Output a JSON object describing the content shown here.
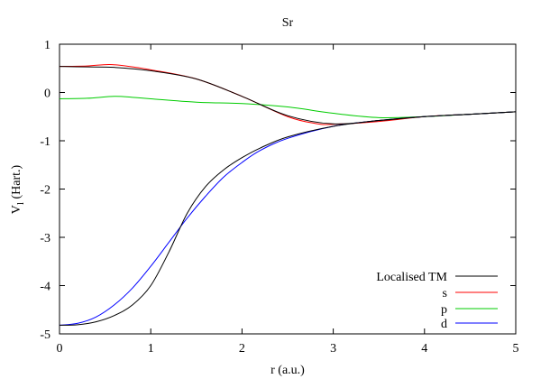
{
  "chart_data": {
    "type": "line",
    "title": "Sr",
    "xlabel": "r (a.u.)",
    "ylabel_main": "V",
    "ylabel_sub": "l",
    "ylabel_rest": " (Hart.)",
    "xlim": [
      0,
      5
    ],
    "ylim": [
      -5,
      1
    ],
    "xticks": [
      0,
      1,
      2,
      3,
      4,
      5
    ],
    "yticks": [
      1,
      0,
      -1,
      -2,
      -3,
      -4,
      -5
    ],
    "grid": false,
    "legend_position": "bottom-right",
    "series": [
      {
        "name": "Localised TM",
        "color": "#000000",
        "x": [
          0,
          0.3,
          0.6,
          1.0,
          1.5,
          2.0,
          2.5,
          3.0,
          3.5,
          4.0,
          4.5,
          5.0
        ],
        "y": [
          0.54,
          0.53,
          0.52,
          0.45,
          0.28,
          -0.08,
          -0.48,
          -0.65,
          -0.58,
          -0.5,
          -0.45,
          -0.4
        ]
      },
      {
        "name": "s",
        "color": "#ff0000",
        "x": [
          0,
          0.3,
          0.55,
          0.8,
          1.0,
          1.5,
          2.0,
          2.5,
          2.8,
          3.0,
          3.5,
          4.0,
          4.5,
          5.0
        ],
        "y": [
          0.54,
          0.55,
          0.58,
          0.53,
          0.47,
          0.28,
          -0.08,
          -0.5,
          -0.64,
          -0.66,
          -0.6,
          -0.5,
          -0.45,
          -0.4
        ]
      },
      {
        "name": "p",
        "color": "#00cc00",
        "x": [
          0,
          0.3,
          0.6,
          0.8,
          1.0,
          1.5,
          2.0,
          2.5,
          3.0,
          3.5,
          4.0,
          4.5,
          5.0
        ],
        "y": [
          -0.13,
          -0.12,
          -0.08,
          -0.1,
          -0.13,
          -0.2,
          -0.23,
          -0.3,
          -0.43,
          -0.52,
          -0.5,
          -0.45,
          -0.4
        ]
      },
      {
        "name": "d",
        "color": "#0000ff",
        "x": [
          0,
          0.2,
          0.4,
          0.6,
          0.8,
          1.0,
          1.2,
          1.4,
          1.6,
          1.8,
          2.0,
          2.2,
          2.5,
          3.0,
          3.5,
          4.0,
          4.5,
          5.0
        ],
        "y": [
          -4.82,
          -4.78,
          -4.65,
          -4.4,
          -4.05,
          -3.6,
          -3.1,
          -2.6,
          -2.15,
          -1.75,
          -1.45,
          -1.2,
          -0.95,
          -0.7,
          -0.58,
          -0.5,
          -0.45,
          -0.4
        ]
      },
      {
        "name": "",
        "color": "#000000",
        "x": [
          0,
          0.2,
          0.4,
          0.6,
          0.8,
          1.0,
          1.2,
          1.4,
          1.6,
          1.8,
          2.0,
          2.2,
          2.5,
          3.0,
          3.5,
          4.0,
          4.5,
          5.0
        ],
        "y": [
          -4.82,
          -4.81,
          -4.75,
          -4.62,
          -4.4,
          -4.0,
          -3.3,
          -2.5,
          -1.95,
          -1.6,
          -1.35,
          -1.15,
          -0.92,
          -0.7,
          -0.58,
          -0.5,
          -0.45,
          -0.4
        ]
      }
    ]
  }
}
